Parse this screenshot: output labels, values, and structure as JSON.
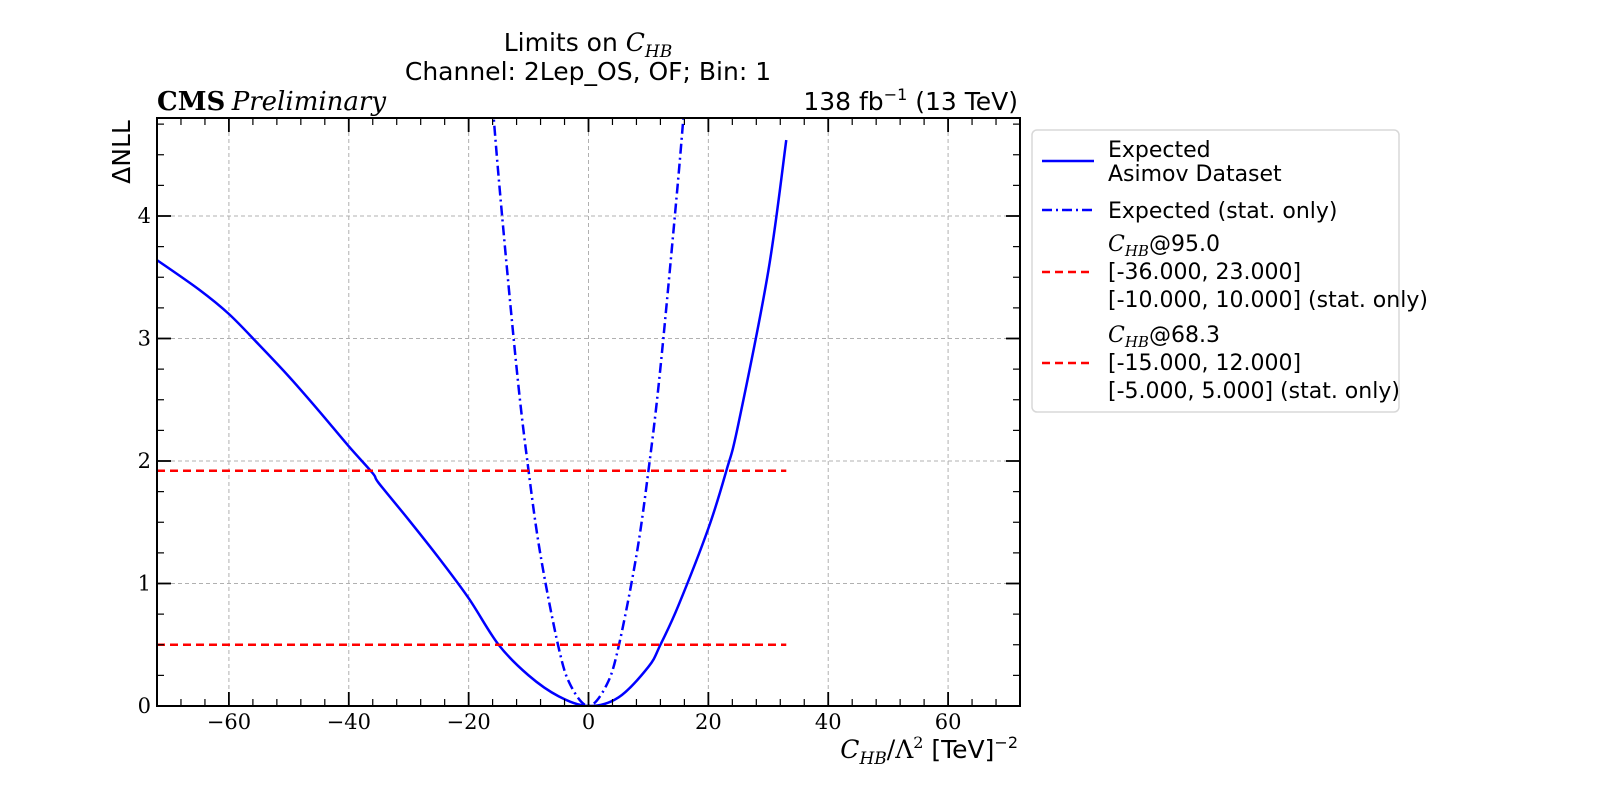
{
  "title": {
    "line1_prefix": "Limits on ",
    "line1_var": "C",
    "line1_sub": "HB",
    "line2": "Channel: 2Lep_OS, OF; Bin: 1"
  },
  "cms_label": {
    "bold": "CMS",
    "italic": "Preliminary"
  },
  "lumi_label": {
    "value": "138 fb",
    "sup": "−1",
    "suffix": " (13 TeV)"
  },
  "axes": {
    "ylabel": "ΔNLL",
    "xlabel": {
      "var": "C",
      "sub": "HB",
      "rest": "/Λ",
      "sup2": "2",
      "unit": " [TeV]",
      "sup3": "−2"
    }
  },
  "legend": {
    "expected_line1": "Expected",
    "expected_line2": "Asimov Dataset",
    "expected_stat": "Expected (stat. only)",
    "cl95": {
      "var": "C",
      "sub": "HB",
      "cl": "@95.0",
      "interval": "[-36.000, 23.000]",
      "interval_stat": "[-10.000, 10.000] (stat. only)"
    },
    "cl68": {
      "var": "C",
      "sub": "HB",
      "cl": "@68.3",
      "interval": "[-15.000, 12.000]",
      "interval_stat": "[-5.000, 5.000] (stat. only)"
    }
  },
  "colors": {
    "blue": "#0000ff",
    "red": "#ff0000",
    "grid": "#b0b0b0"
  },
  "chart_data": {
    "type": "line",
    "xlim": [
      -72,
      72
    ],
    "ylim": [
      0,
      4.8
    ],
    "xticks": [
      -60,
      -40,
      -20,
      0,
      20,
      40,
      60
    ],
    "xtick_labels": [
      "−60",
      "−40",
      "−20",
      "0",
      "20",
      "40",
      "60"
    ],
    "yticks": [
      0,
      1,
      2,
      3,
      4
    ],
    "ytick_labels": [
      "0",
      "1",
      "2",
      "3",
      "4"
    ],
    "grid": true,
    "legend_position": "outside-right",
    "series": [
      {
        "name": "Expected Asimov Dataset",
        "style": "solid",
        "x": [
          -72,
          -65,
          -60,
          -55,
          -50,
          -45,
          -40,
          -36,
          -35,
          -30,
          -25,
          -20,
          -15,
          -10,
          -5,
          0,
          5,
          10,
          12,
          15,
          20,
          23,
          25,
          30,
          33
        ],
        "y": [
          3.64,
          3.4,
          3.2,
          2.95,
          2.69,
          2.41,
          2.12,
          1.9,
          1.82,
          1.52,
          1.21,
          0.88,
          0.5,
          0.25,
          0.08,
          0.0,
          0.07,
          0.32,
          0.5,
          0.82,
          1.45,
          1.92,
          2.3,
          3.55,
          4.62
        ]
      },
      {
        "name": "Expected (stat. only)",
        "style": "dashdot",
        "x": [
          -17,
          -15,
          -12,
          -10,
          -8,
          -5,
          -3,
          0,
          3,
          5,
          8,
          10,
          12,
          15,
          16.5
        ],
        "y": [
          5.55,
          4.32,
          2.76,
          1.92,
          1.23,
          0.48,
          0.17,
          0.0,
          0.17,
          0.48,
          1.23,
          1.92,
          2.76,
          4.32,
          5.22
        ]
      },
      {
        "name": "95.0 threshold",
        "style": "dashed",
        "x": [
          -72,
          33
        ],
        "y": [
          1.92,
          1.92
        ]
      },
      {
        "name": "68.3 threshold",
        "style": "dashed",
        "x": [
          -72,
          33
        ],
        "y": [
          0.5,
          0.5
        ]
      }
    ]
  }
}
